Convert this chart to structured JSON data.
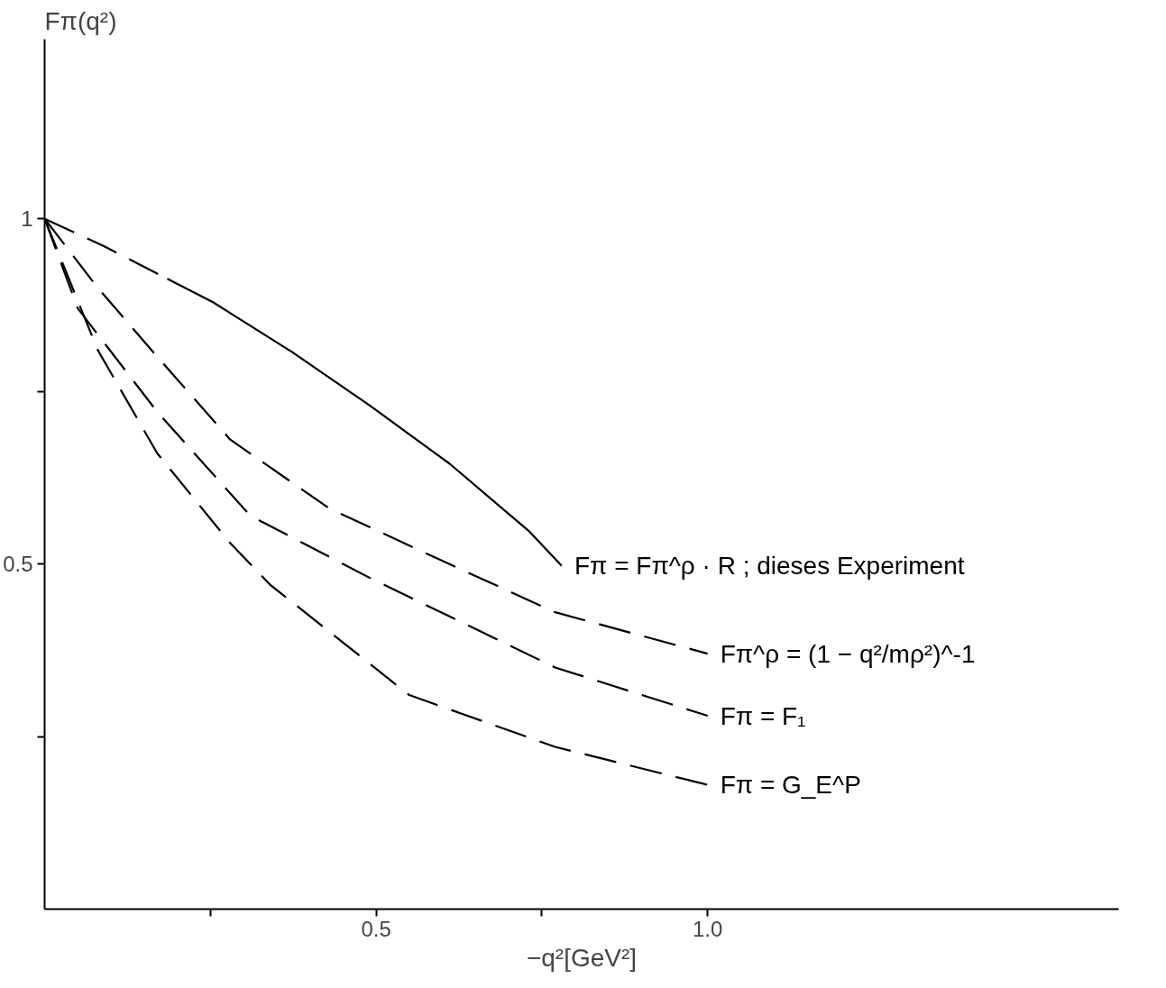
{
  "chart_data": {
    "type": "line",
    "xlabel": "−q²[GeV²]",
    "ylabel": "Fπ(q²)",
    "xlim": [
      0,
      1.62
    ],
    "ylim": [
      0,
      1.26
    ],
    "xticks": [
      {
        "value": 0.25,
        "label": null
      },
      0.5,
      {
        "value": 0.75,
        "label": null
      },
      {
        "value": 1.0,
        "label": "1.0"
      }
    ],
    "yticks": [
      {
        "value": 0.25,
        "label": null
      },
      0.5,
      {
        "value": 0.75,
        "label": null
      },
      1
    ],
    "grid": false,
    "legend": false,
    "marker": "none",
    "series": [
      {
        "color": "#000000",
        "line_style": "dashed",
        "x": [
          0,
          0.09,
          0.185
        ],
        "values": [
          1,
          0.96,
          0.913
        ]
      },
      {
        "name": "Fπ = Fπ^ρ · R ; dieses Experiment",
        "color": "#000000",
        "line_style": "solid",
        "x": [
          0.185,
          0.254,
          0.373,
          0.491,
          0.611,
          0.73,
          0.78
        ],
        "values": [
          0.913,
          0.879,
          0.807,
          0.729,
          0.645,
          0.548,
          0.497
        ]
      },
      {
        "name": "Fπ^ρ = (1 − q²/mρ²)^-1",
        "color": "#000000",
        "line_style": "dashed",
        "x": [
          0,
          0.08,
          0.17,
          0.28,
          0.43,
          0.61,
          0.77,
          1.0
        ],
        "values": [
          1,
          0.9,
          0.8,
          0.68,
          0.58,
          0.5,
          0.43,
          0.37
        ]
      },
      {
        "name": "Fπ = F₁",
        "color": "#000000",
        "line_style": "dashed",
        "x": [
          0,
          0.05,
          0.17,
          0.31,
          0.49,
          0.77,
          1.0
        ],
        "values": [
          1,
          0.87,
          0.72,
          0.57,
          0.48,
          0.35,
          0.28
        ]
      },
      {
        "name": "Fπ = G_E^P",
        "color": "#000000",
        "line_style": "dashed",
        "x": [
          0,
          0.08,
          0.17,
          0.28,
          0.34,
          0.55,
          0.77,
          1.0
        ],
        "values": [
          1,
          0.81,
          0.66,
          0.53,
          0.47,
          0.31,
          0.235,
          0.18
        ]
      }
    ]
  }
}
